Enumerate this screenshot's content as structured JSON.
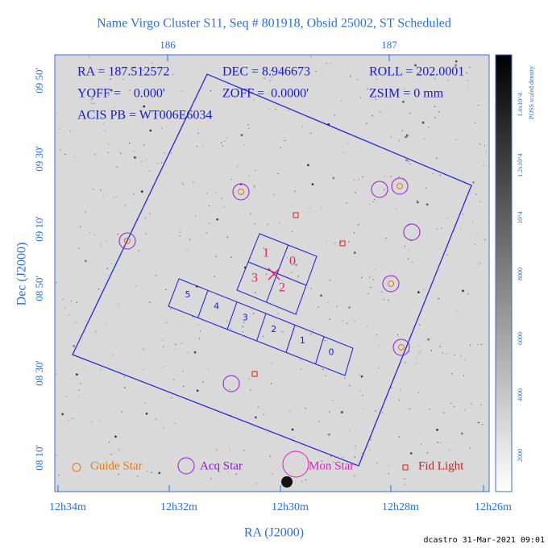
{
  "title": "Name Virgo Cluster S11, Seq # 801918, Obsid 25002, ST Scheduled",
  "top_axis": {
    "ticks": [
      "186",
      "187"
    ]
  },
  "x_axis": {
    "label": "RA (J2000)",
    "ticks": [
      "12h34m",
      "12h32m",
      "12h30m",
      "12h28m",
      "12h26m"
    ]
  },
  "y_axis": {
    "label": "Dec (J2000)",
    "ticks": [
      "08 10'",
      "08 30'",
      "08 50'",
      "09 10'",
      "09 30'",
      "09 50'"
    ]
  },
  "info": [
    "RA = 187.512572",
    "DEC = 8.946673",
    "ROLL = 202.0001",
    "YOFF =    0.000'",
    "ZOFF =  0.0000'",
    "ZSIM = 0 mm",
    "ACIS PB = WT006E6034"
  ],
  "acis_i": [
    "1",
    "0",
    "3",
    "2"
  ],
  "acis_s": [
    "5",
    "4",
    "3",
    "2",
    "1",
    "0"
  ],
  "legend": [
    "Guide Star",
    "Acq Star",
    "Mon Star",
    "Fid Light"
  ],
  "colorbar": {
    "label": "POSS scaled density",
    "ticks": [
      "2000",
      "4000",
      "6000",
      "8000",
      "10^4",
      "1.2x10^4",
      "1.4x10^4"
    ]
  },
  "footer": "dcastro 31-Mar-2021 09:01"
}
